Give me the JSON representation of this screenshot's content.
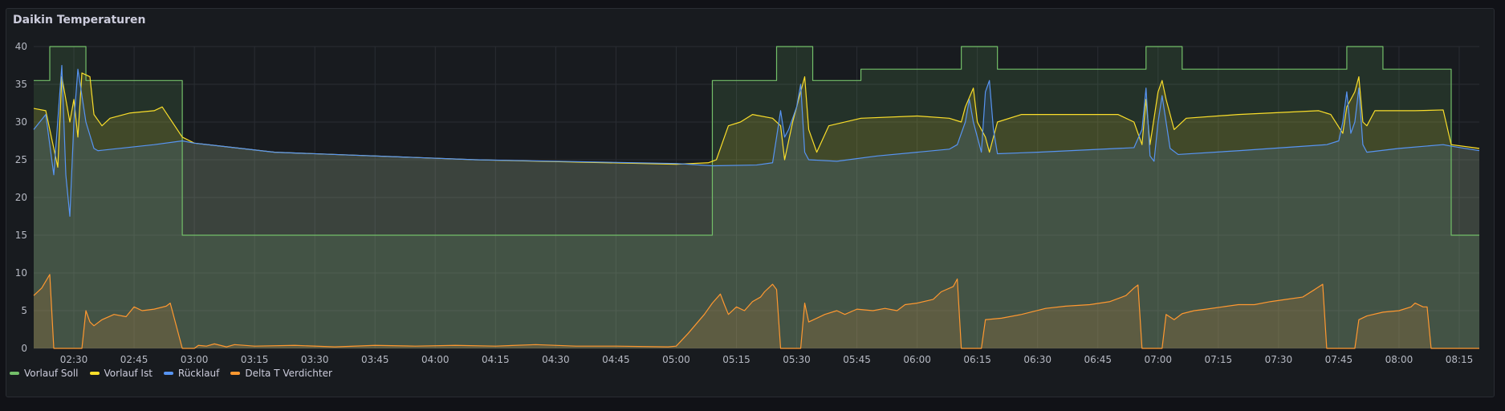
{
  "panel": {
    "title": "Daikin Temperaturen"
  },
  "chart_data": {
    "type": "line",
    "x_ticks": [
      "02:30",
      "02:45",
      "03:00",
      "03:15",
      "03:30",
      "03:45",
      "04:00",
      "04:15",
      "04:30",
      "04:45",
      "05:00",
      "05:15",
      "05:30",
      "05:45",
      "06:00",
      "06:15",
      "06:30",
      "06:45",
      "07:00",
      "07:15",
      "07:30",
      "07:45",
      "08:00",
      "08:15"
    ],
    "x_range_minutes": [
      140,
      500
    ],
    "ylim": [
      0,
      40
    ],
    "y_ticks": [
      0,
      5,
      10,
      15,
      20,
      25,
      30,
      35,
      40
    ],
    "grid": true,
    "legend_placement": "bottom-left",
    "series": [
      {
        "name": "Vorlauf Soll",
        "color": "#73bf69",
        "points": [
          [
            140,
            35.5
          ],
          [
            144,
            35.5
          ],
          [
            144,
            40
          ],
          [
            153,
            40
          ],
          [
            153,
            35.5
          ],
          [
            177,
            35.5
          ],
          [
            177,
            15
          ],
          [
            309,
            15
          ],
          [
            309,
            35.5
          ],
          [
            325,
            35.5
          ],
          [
            325,
            40
          ],
          [
            334,
            40
          ],
          [
            334,
            35.5
          ],
          [
            346,
            35.5
          ],
          [
            346,
            37
          ],
          [
            371,
            37
          ],
          [
            371,
            40
          ],
          [
            380,
            40
          ],
          [
            380,
            37
          ],
          [
            417,
            37
          ],
          [
            417,
            40
          ],
          [
            426,
            40
          ],
          [
            426,
            37
          ],
          [
            467,
            37
          ],
          [
            467,
            40
          ],
          [
            476,
            40
          ],
          [
            476,
            37
          ],
          [
            493,
            37
          ],
          [
            493,
            15
          ],
          [
            500,
            15
          ]
        ]
      },
      {
        "name": "Vorlauf Ist",
        "color": "#fade2a",
        "points": [
          [
            140,
            31.8
          ],
          [
            143,
            31.5
          ],
          [
            146,
            24
          ],
          [
            147,
            36
          ],
          [
            149,
            30
          ],
          [
            150,
            33
          ],
          [
            151,
            28
          ],
          [
            152,
            36.5
          ],
          [
            154,
            36
          ],
          [
            155,
            31
          ],
          [
            157,
            29.5
          ],
          [
            159,
            30.5
          ],
          [
            164,
            31.2
          ],
          [
            170,
            31.5
          ],
          [
            172,
            32
          ],
          [
            177,
            28
          ],
          [
            180,
            27.2
          ],
          [
            200,
            26
          ],
          [
            250,
            25
          ],
          [
            300,
            24.4
          ],
          [
            308,
            24.6
          ],
          [
            310,
            25
          ],
          [
            313,
            29.5
          ],
          [
            316,
            30
          ],
          [
            319,
            31
          ],
          [
            324,
            30.5
          ],
          [
            326,
            29.5
          ],
          [
            327,
            25
          ],
          [
            329,
            30
          ],
          [
            331,
            34
          ],
          [
            332,
            36
          ],
          [
            333,
            29
          ],
          [
            335,
            26
          ],
          [
            338,
            29.5
          ],
          [
            346,
            30.5
          ],
          [
            360,
            30.8
          ],
          [
            368,
            30.5
          ],
          [
            371,
            30
          ],
          [
            372,
            32
          ],
          [
            374,
            34.5
          ],
          [
            375,
            30
          ],
          [
            377,
            28
          ],
          [
            378,
            26
          ],
          [
            380,
            30
          ],
          [
            386,
            31
          ],
          [
            410,
            31
          ],
          [
            414,
            30
          ],
          [
            416,
            27
          ],
          [
            417,
            33
          ],
          [
            418,
            27
          ],
          [
            420,
            34
          ],
          [
            421,
            35.5
          ],
          [
            422,
            33
          ],
          [
            424,
            29
          ],
          [
            427,
            30.5
          ],
          [
            440,
            31
          ],
          [
            460,
            31.5
          ],
          [
            463,
            31
          ],
          [
            466,
            28.5
          ],
          [
            467,
            32
          ],
          [
            469,
            34
          ],
          [
            470,
            36
          ],
          [
            471,
            30
          ],
          [
            472,
            29.5
          ],
          [
            474,
            31.5
          ],
          [
            484,
            31.5
          ],
          [
            491,
            31.6
          ],
          [
            493,
            27
          ],
          [
            500,
            26.5
          ]
        ]
      },
      {
        "name": "Rücklauf",
        "color": "#5794f2",
        "points": [
          [
            140,
            29
          ],
          [
            143,
            31
          ],
          [
            145,
            23
          ],
          [
            147,
            37.5
          ],
          [
            148,
            23
          ],
          [
            149,
            17.5
          ],
          [
            150,
            30
          ],
          [
            151,
            37
          ],
          [
            153,
            30
          ],
          [
            155,
            26.5
          ],
          [
            156,
            26.2
          ],
          [
            170,
            27
          ],
          [
            177,
            27.5
          ],
          [
            180,
            27.2
          ],
          [
            200,
            26
          ],
          [
            250,
            25
          ],
          [
            300,
            24.5
          ],
          [
            309,
            24.2
          ],
          [
            320,
            24.3
          ],
          [
            324,
            24.6
          ],
          [
            325,
            28
          ],
          [
            326,
            31.5
          ],
          [
            327,
            28
          ],
          [
            328,
            29
          ],
          [
            330,
            32
          ],
          [
            331,
            35
          ],
          [
            332,
            26
          ],
          [
            333,
            25
          ],
          [
            340,
            24.8
          ],
          [
            350,
            25.5
          ],
          [
            368,
            26.4
          ],
          [
            370,
            27
          ],
          [
            372,
            30
          ],
          [
            373,
            33
          ],
          [
            374,
            30
          ],
          [
            375,
            28
          ],
          [
            376,
            26
          ],
          [
            377,
            34
          ],
          [
            378,
            35.5
          ],
          [
            379,
            29
          ],
          [
            380,
            25.8
          ],
          [
            390,
            26
          ],
          [
            410,
            26.5
          ],
          [
            414,
            26.6
          ],
          [
            416,
            29
          ],
          [
            417,
            34.5
          ],
          [
            418,
            25.5
          ],
          [
            419,
            24.8
          ],
          [
            420,
            30
          ],
          [
            421,
            33.5
          ],
          [
            422,
            30
          ],
          [
            423,
            26.5
          ],
          [
            425,
            25.7
          ],
          [
            440,
            26.2
          ],
          [
            462,
            27
          ],
          [
            465,
            27.5
          ],
          [
            466,
            30
          ],
          [
            467,
            34
          ],
          [
            468,
            28.5
          ],
          [
            469,
            30
          ],
          [
            470,
            34.5
          ],
          [
            471,
            27
          ],
          [
            472,
            26
          ],
          [
            480,
            26.5
          ],
          [
            491,
            27
          ],
          [
            493,
            26.8
          ],
          [
            500,
            26.2
          ]
        ]
      },
      {
        "name": "Delta T Verdichter",
        "color": "#ff9830",
        "points": [
          [
            140,
            7
          ],
          [
            142,
            8
          ],
          [
            144,
            9.8
          ],
          [
            145,
            0
          ],
          [
            152,
            0
          ],
          [
            153,
            5
          ],
          [
            154,
            3.5
          ],
          [
            155,
            3
          ],
          [
            157,
            3.8
          ],
          [
            160,
            4.5
          ],
          [
            163,
            4.2
          ],
          [
            165,
            5.5
          ],
          [
            167,
            5
          ],
          [
            170,
            5.2
          ],
          [
            173,
            5.6
          ],
          [
            174,
            6
          ],
          [
            177,
            0
          ],
          [
            180,
            0
          ],
          [
            181,
            0.4
          ],
          [
            183,
            0.3
          ],
          [
            185,
            0.6
          ],
          [
            188,
            0.2
          ],
          [
            190,
            0.5
          ],
          [
            195,
            0.3
          ],
          [
            205,
            0.4
          ],
          [
            215,
            0.2
          ],
          [
            225,
            0.4
          ],
          [
            235,
            0.3
          ],
          [
            245,
            0.4
          ],
          [
            255,
            0.3
          ],
          [
            265,
            0.5
          ],
          [
            275,
            0.3
          ],
          [
            285,
            0.3
          ],
          [
            298,
            0.2
          ],
          [
            300,
            0.3
          ],
          [
            303,
            2
          ],
          [
            307,
            4.5
          ],
          [
            309,
            6
          ],
          [
            311,
            7.2
          ],
          [
            312,
            5.8
          ],
          [
            313,
            4.5
          ],
          [
            315,
            5.5
          ],
          [
            317,
            5
          ],
          [
            319,
            6.2
          ],
          [
            321,
            6.8
          ],
          [
            322,
            7.5
          ],
          [
            323,
            8
          ],
          [
            324,
            8.5
          ],
          [
            325,
            7.8
          ],
          [
            326,
            0
          ],
          [
            331,
            0
          ],
          [
            332,
            6
          ],
          [
            333,
            3.5
          ],
          [
            335,
            4
          ],
          [
            337,
            4.5
          ],
          [
            340,
            5
          ],
          [
            342,
            4.5
          ],
          [
            345,
            5.2
          ],
          [
            349,
            5
          ],
          [
            352,
            5.3
          ],
          [
            355,
            5
          ],
          [
            357,
            5.8
          ],
          [
            360,
            6
          ],
          [
            364,
            6.5
          ],
          [
            366,
            7.5
          ],
          [
            369,
            8.2
          ],
          [
            370,
            9.2
          ],
          [
            371,
            0
          ],
          [
            376,
            0
          ],
          [
            377,
            3.8
          ],
          [
            381,
            4
          ],
          [
            386,
            4.5
          ],
          [
            392,
            5.3
          ],
          [
            397,
            5.6
          ],
          [
            403,
            5.8
          ],
          [
            408,
            6.2
          ],
          [
            412,
            7
          ],
          [
            414,
            8
          ],
          [
            415,
            8.4
          ],
          [
            416,
            0
          ],
          [
            421,
            0
          ],
          [
            422,
            4.5
          ],
          [
            424,
            3.8
          ],
          [
            426,
            4.6
          ],
          [
            429,
            5
          ],
          [
            432,
            5.2
          ],
          [
            436,
            5.5
          ],
          [
            440,
            5.8
          ],
          [
            444,
            5.8
          ],
          [
            448,
            6.2
          ],
          [
            452,
            6.5
          ],
          [
            456,
            6.8
          ],
          [
            459,
            7.8
          ],
          [
            461,
            8.5
          ],
          [
            462,
            0
          ],
          [
            469,
            0
          ],
          [
            470,
            3.8
          ],
          [
            472,
            4.3
          ],
          [
            476,
            4.8
          ],
          [
            480,
            5
          ],
          [
            483,
            5.5
          ],
          [
            484,
            6
          ],
          [
            486,
            5.5
          ],
          [
            487,
            5.5
          ],
          [
            488,
            0
          ],
          [
            500,
            0
          ]
        ]
      }
    ]
  }
}
